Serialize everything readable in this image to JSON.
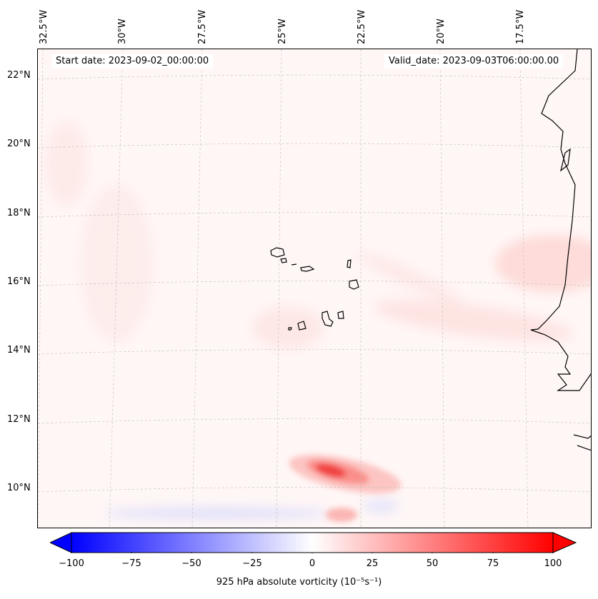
{
  "map": {
    "start_date": "Start date: 2023-09-02_00:00:00",
    "valid_date": "Valid_date: 2023-09-03T06:00:00.00",
    "lon_labels": [
      "32.5°W",
      "30°W",
      "27.5°W",
      "25°W",
      "22.5°W",
      "20°W",
      "17.5°W"
    ],
    "lat_labels": [
      "22°N",
      "20°N",
      "18°N",
      "16°N",
      "14°N",
      "12°N",
      "10°N"
    ],
    "colors": {
      "negative": "#0000ff",
      "neutral": "#ffffff",
      "positive": "#ff0000",
      "background": "#fff7f6",
      "coast": "#000000"
    }
  },
  "colorbar": {
    "ticks": [
      "−100",
      "−75",
      "−50",
      "−25",
      "0",
      "25",
      "50",
      "75",
      "100"
    ],
    "label": "925 hPa absolute vorticity (10⁻⁵s⁻¹)",
    "range": [
      -100,
      100
    ]
  }
}
